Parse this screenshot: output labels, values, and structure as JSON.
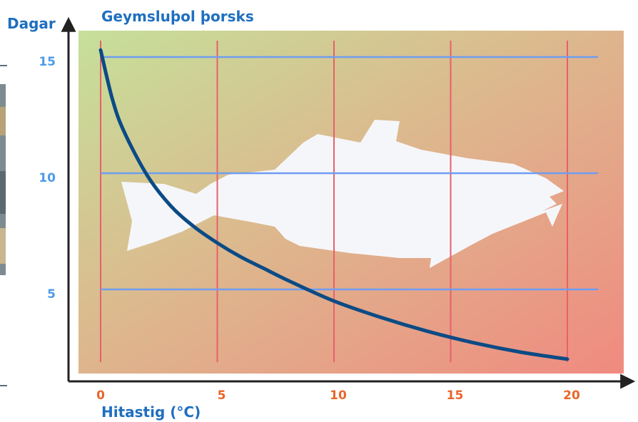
{
  "chart_data": {
    "type": "line",
    "title": "Geymsluþol þorsks",
    "ylabel": "Dagar",
    "xlabel": "Hitastig (°C)",
    "xlim": [
      0,
      20
    ],
    "ylim": [
      0,
      15
    ],
    "x_ticks": [
      0,
      5,
      10,
      15,
      20
    ],
    "y_ticks": [
      5,
      10,
      15
    ],
    "x_tick_labels": [
      "0",
      "5",
      "10",
      "15",
      "20"
    ],
    "y_tick_labels": [
      "5",
      "10",
      "15"
    ],
    "grid": true,
    "series": [
      {
        "x": [
          0,
          0.5,
          1,
          2,
          3,
          4,
          5,
          6,
          7,
          8,
          10,
          12,
          14,
          16,
          18,
          20
        ],
        "y": [
          15.3,
          13.2,
          11.8,
          9.9,
          8.6,
          7.7,
          7.0,
          6.4,
          5.9,
          5.4,
          4.5,
          3.8,
          3.2,
          2.7,
          2.3,
          2.0
        ]
      }
    ],
    "colors": {
      "curve": "#0b4b85",
      "grid_vertical": "#e8606a",
      "grid_horizontal": "#6f9df0",
      "labels": "#1f6fc0",
      "tick_labels": "#4d9ae8",
      "x_tick_labels": "#e8662a",
      "background_start": "#c5e09a",
      "background_end": "#f08a80",
      "fish": "#f5f6fa",
      "axes": "#222222"
    },
    "decoration": "fish-silhouette"
  }
}
